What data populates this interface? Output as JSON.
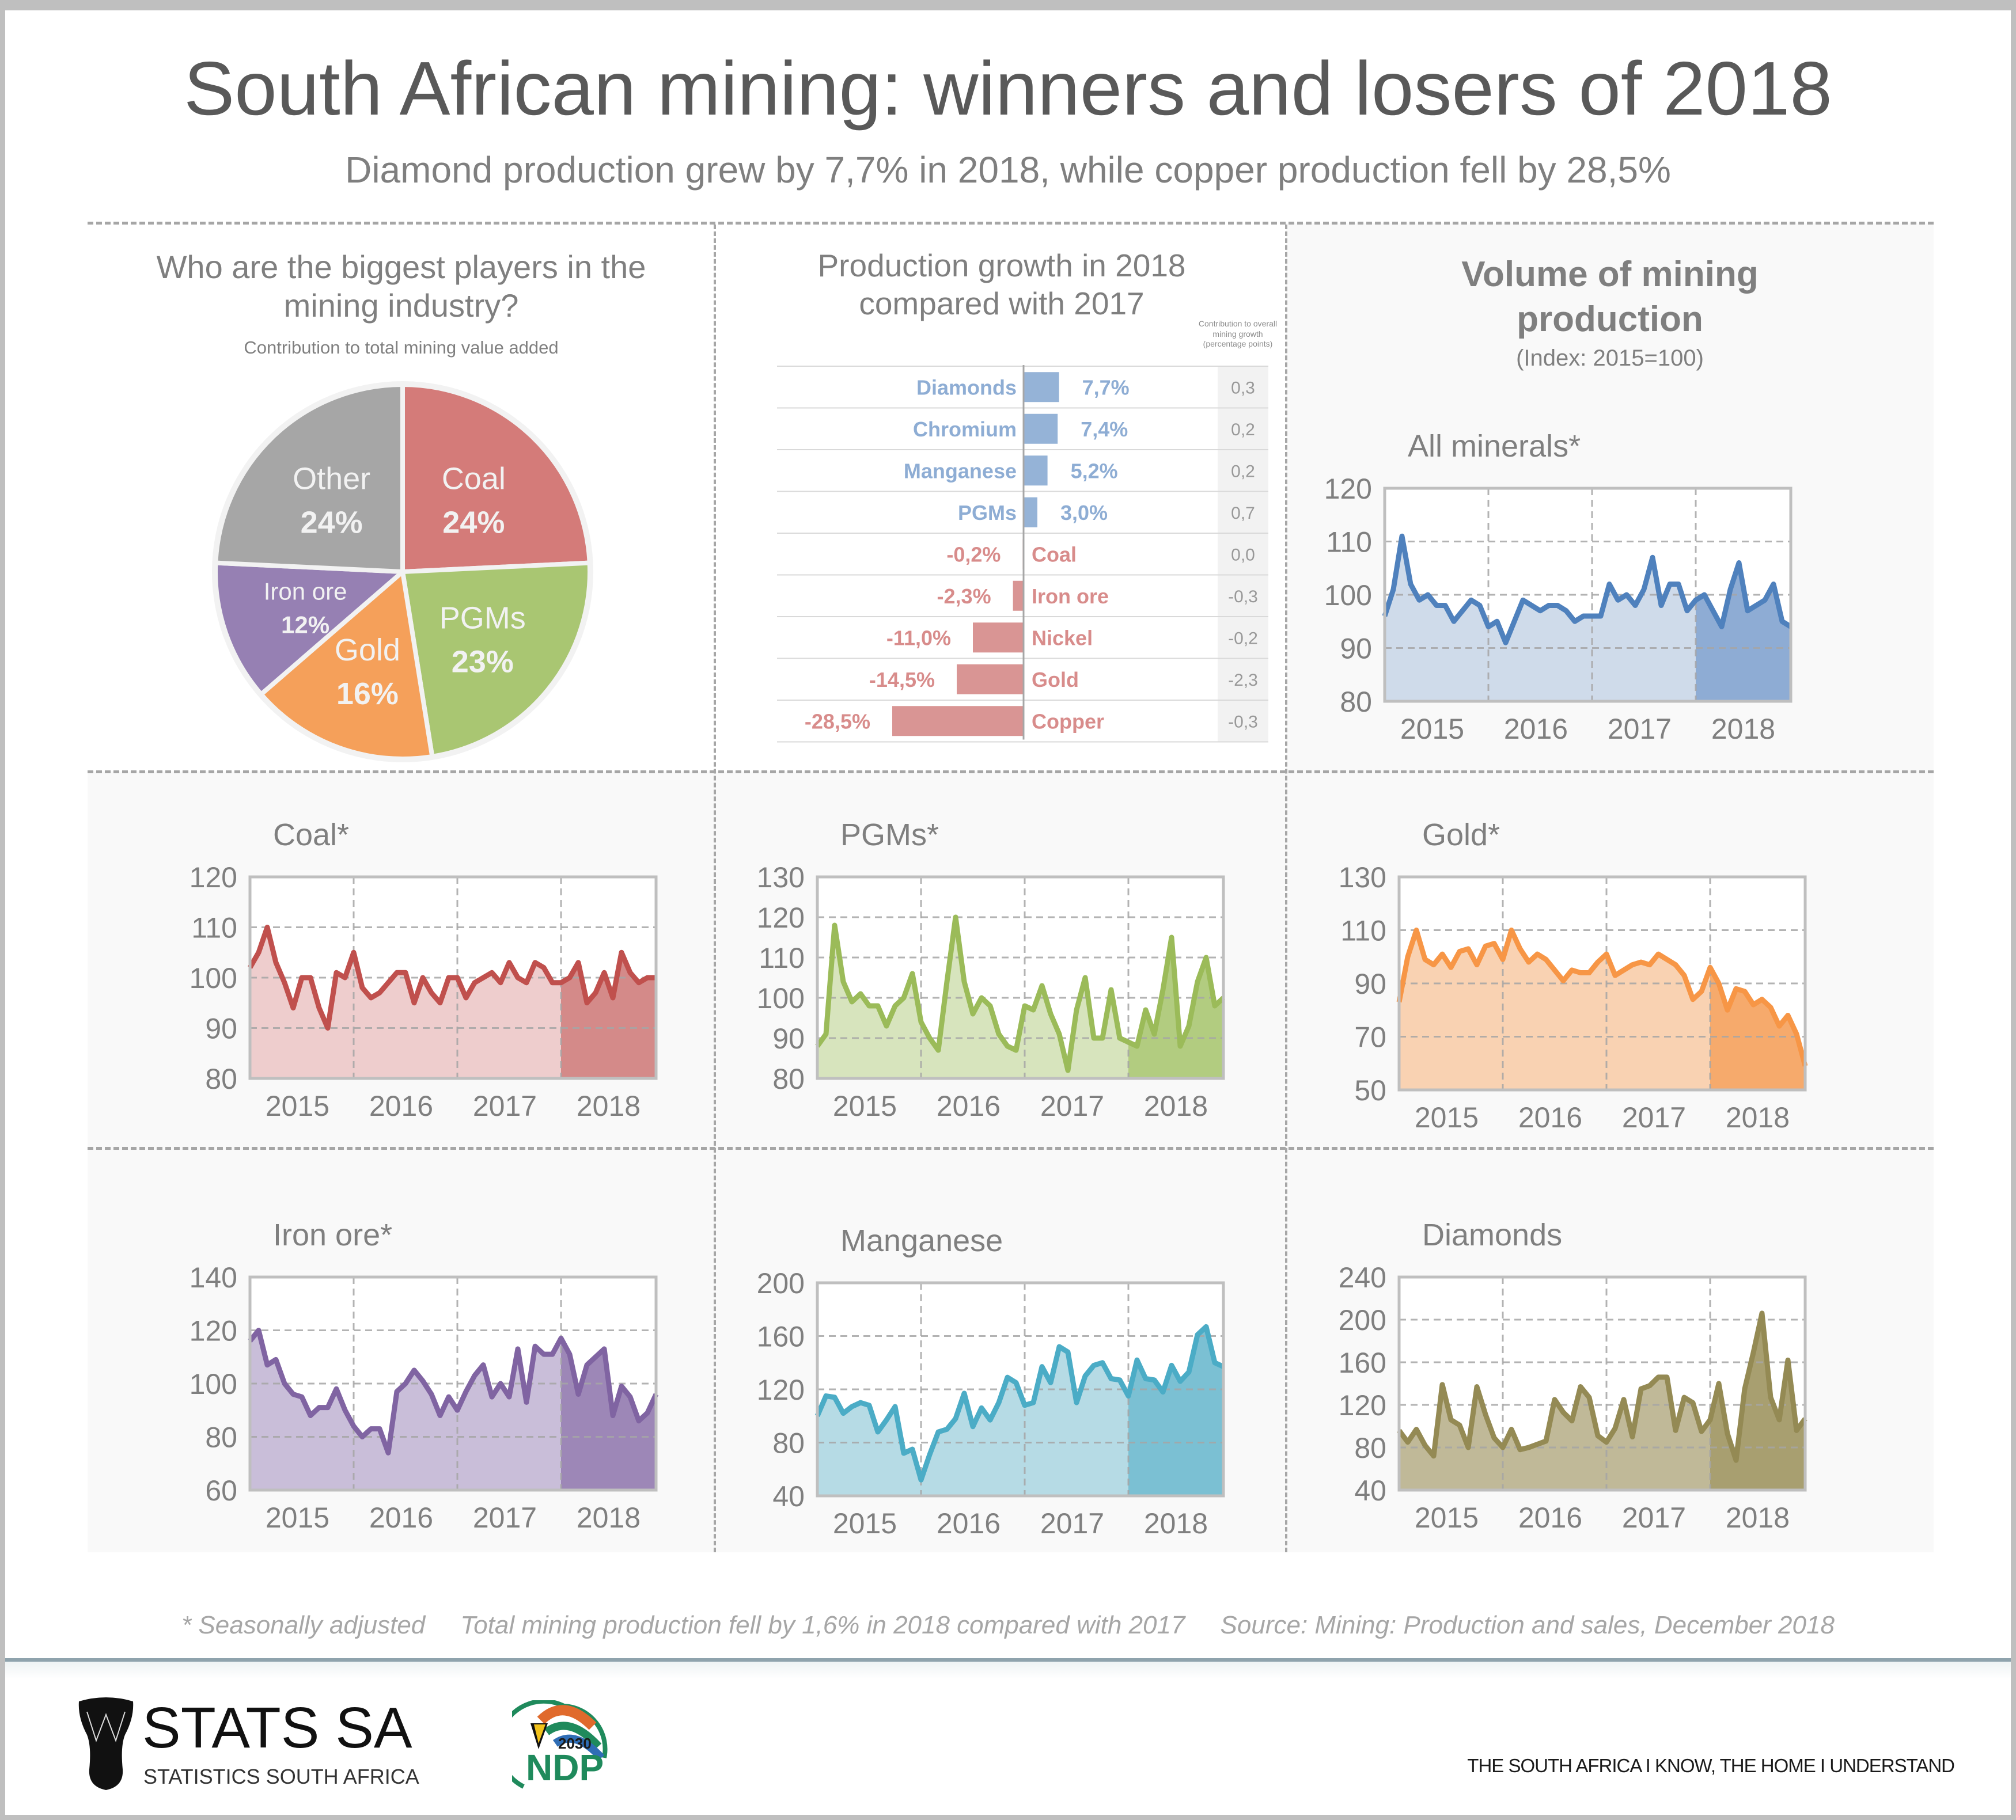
{
  "header": {
    "title": "South African mining: winners and losers of 2018",
    "subtitle": "Diamond production grew by 7,7% in 2018, while copper production fell by 28,5%"
  },
  "colors": {
    "text": "#595959",
    "muted": "#7f7f7f",
    "positive": "#95b3d7",
    "negative": "#d99594",
    "coal": "#c0504d",
    "pgms": "#9bbb59",
    "gold": "#f79646",
    "iron_ore": "#8064a2",
    "manganese": "#4bacc6",
    "diamonds": "#948a54",
    "all_minerals": "#4f81bd",
    "other": "#a6a6a6"
  },
  "pie_panel": {
    "title_line1": "Who are the biggest players in the",
    "title_line2": "mining industry?",
    "subtitle": "Contribution to total mining value added"
  },
  "bar_panel": {
    "title_line1": "Production growth in 2018",
    "title_line2": "compared with 2017",
    "contribution_header": [
      "Contribution to overall",
      "mining growth",
      "(percentage points)"
    ]
  },
  "volume_panel": {
    "title_line1": "Volume of mining",
    "title_line2": "production",
    "subtitle": "(Index: 2015=100)"
  },
  "footer": {
    "footnote": "* Seasonally adjusted     Total mining production fell by 1,6% in 2018 compared with 2017     Source: Mining: Production and sales, December 2018",
    "logo_main": "STATS SA",
    "logo_sub": "STATISTICS SOUTH AFRICA",
    "ndp_year": "2030",
    "ndp_text": "NDP",
    "tagline": "THE SOUTH AFRICA I KNOW, THE HOME I UNDERSTAND"
  },
  "chart_data": [
    {
      "id": "pie",
      "type": "pie",
      "title": "Who are the biggest players in the mining industry?",
      "subtitle": "Contribution to total mining value added",
      "slices": [
        {
          "label": "Coal",
          "value": 24,
          "display": "24%",
          "color": "#d47b79"
        },
        {
          "label": "PGMs",
          "value": 23,
          "display": "23%",
          "color": "#a9c672"
        },
        {
          "label": "Gold",
          "value": 16,
          "display": "16%",
          "color": "#f5a05a"
        },
        {
          "label": "Iron ore",
          "value": 12,
          "display": "12%",
          "color": "#9680b3"
        },
        {
          "label": "Other",
          "value": 24,
          "display": "24%",
          "color": "#a6a6a6"
        }
      ]
    },
    {
      "id": "growth",
      "type": "bar",
      "orientation": "horizontal",
      "title": "Production growth in 2018 compared with 2017",
      "categories": [
        "Diamonds",
        "Chromium",
        "Manganese",
        "PGMs",
        "Coal",
        "Iron ore",
        "Nickel",
        "Gold",
        "Copper"
      ],
      "values": [
        7.7,
        7.4,
        5.2,
        3.0,
        -0.2,
        -2.3,
        -11.0,
        -14.5,
        -28.5
      ],
      "value_labels": [
        "7,7%",
        "7,4%",
        "5,2%",
        "3,0%",
        "-0,2%",
        "-2,3%",
        "-11,0%",
        "-14,5%",
        "-28,5%"
      ],
      "contribution_label": "Contribution to overall mining growth (percentage points)",
      "contribution": [
        "0,3",
        "0,2",
        "0,2",
        "0,7",
        "0,0",
        "-0,3",
        "-0,2",
        "-2,3",
        "-0,3"
      ]
    },
    {
      "id": "all_minerals",
      "type": "area",
      "title": "All minerals*",
      "color": "#4f81bd",
      "fill": "#cfdbea",
      "fill_2018": "#8eacd4",
      "ylim": [
        80,
        120
      ],
      "yticks": [
        80,
        90,
        100,
        110,
        120
      ],
      "xlabels": [
        "2015",
        "2016",
        "2017",
        "2018"
      ],
      "grid": true,
      "x": "monthly Jan 2015 - Dec 2018",
      "values": [
        96,
        101,
        111,
        102,
        99,
        100,
        98,
        98,
        95,
        97,
        99,
        98,
        94,
        95,
        91,
        95,
        99,
        98,
        97,
        98,
        98,
        97,
        95,
        96,
        96,
        96,
        102,
        99,
        100,
        98,
        101,
        107,
        98,
        102,
        102,
        97,
        99,
        100,
        97,
        94,
        101,
        106,
        97,
        98,
        99,
        102,
        95,
        94
      ]
    },
    {
      "id": "coal",
      "type": "area",
      "title": "Coal*",
      "color": "#c0504d",
      "fill": "#eecdcd",
      "fill_2018": "#d48a89",
      "ylim": [
        80,
        120
      ],
      "yticks": [
        80,
        90,
        100,
        110,
        120
      ],
      "xlabels": [
        "2015",
        "2016",
        "2017",
        "2018"
      ],
      "grid": true,
      "values": [
        102,
        105,
        110,
        103,
        99,
        94,
        100,
        100,
        94,
        90,
        101,
        100,
        105,
        98,
        96,
        97,
        99,
        101,
        101,
        95,
        100,
        97,
        95,
        100,
        100,
        96,
        99,
        100,
        101,
        99,
        103,
        100,
        99,
        103,
        102,
        99,
        99,
        100,
        103,
        95,
        97,
        101,
        96,
        105,
        101,
        99,
        100,
        100
      ]
    },
    {
      "id": "pgms",
      "type": "area",
      "title": "PGMs*",
      "color": "#9bbb59",
      "fill": "#d7e4bd",
      "fill_2018": "#b2cc80",
      "ylim": [
        80,
        130
      ],
      "yticks": [
        80,
        90,
        100,
        110,
        120,
        130
      ],
      "xlabels": [
        "2015",
        "2016",
        "2017",
        "2018"
      ],
      "grid": true,
      "values": [
        88,
        91,
        118,
        104,
        99,
        101,
        98,
        98,
        93,
        98,
        100,
        106,
        94,
        90,
        87,
        104,
        120,
        104,
        96,
        100,
        98,
        91,
        88,
        87,
        98,
        97,
        103,
        96,
        91,
        82,
        97,
        105,
        90,
        90,
        102,
        90,
        89,
        88,
        97,
        91,
        102,
        115,
        88,
        93,
        104,
        110,
        98,
        100
      ]
    },
    {
      "id": "gold",
      "type": "area",
      "title": "Gold*",
      "color": "#f79646",
      "fill": "#f9d2b2",
      "fill_2018": "#f6aa6c",
      "ylim": [
        50,
        130
      ],
      "yticks": [
        50,
        70,
        90,
        110,
        130
      ],
      "xlabels": [
        "2015",
        "2016",
        "2017",
        "2018"
      ],
      "grid": true,
      "values": [
        83,
        100,
        110,
        99,
        97,
        101,
        96,
        102,
        103,
        97,
        104,
        105,
        99,
        110,
        103,
        98,
        101,
        99,
        95,
        91,
        95,
        94,
        94,
        98,
        101,
        93,
        95,
        97,
        98,
        97,
        101,
        99,
        97,
        93,
        84,
        87,
        96,
        90,
        80,
        88,
        87,
        82,
        84,
        81,
        74,
        78,
        71,
        59
      ]
    },
    {
      "id": "iron_ore",
      "type": "area",
      "title": "Iron ore*",
      "color": "#8064a2",
      "fill": "#c9bed9",
      "fill_2018": "#9d87b7",
      "ylim": [
        60,
        140
      ],
      "yticks": [
        60,
        80,
        100,
        120,
        140
      ],
      "xlabels": [
        "2015",
        "2016",
        "2017",
        "2018"
      ],
      "grid": true,
      "values": [
        116,
        120,
        107,
        109,
        100,
        96,
        95,
        88,
        91,
        91,
        98,
        90,
        84,
        80,
        83,
        83,
        74,
        97,
        100,
        105,
        101,
        96,
        88,
        95,
        90,
        97,
        103,
        107,
        95,
        100,
        95,
        113,
        93,
        114,
        111,
        111,
        117,
        111,
        96,
        107,
        110,
        113,
        88,
        99,
        95,
        86,
        89,
        96
      ]
    },
    {
      "id": "manganese",
      "type": "area",
      "title": "Manganese",
      "color": "#4bacc6",
      "fill": "#b6dbe5",
      "fill_2018": "#7bc0d3",
      "ylim": [
        40,
        200
      ],
      "yticks": [
        40,
        80,
        120,
        160,
        200
      ],
      "xlabels": [
        "2015",
        "2016",
        "2017",
        "2018"
      ],
      "grid": true,
      "values": [
        100,
        115,
        114,
        102,
        107,
        110,
        108,
        88,
        97,
        107,
        72,
        75,
        52,
        71,
        88,
        90,
        98,
        117,
        92,
        106,
        97,
        110,
        129,
        125,
        108,
        110,
        137,
        125,
        152,
        148,
        110,
        130,
        138,
        140,
        128,
        127,
        115,
        142,
        128,
        127,
        118,
        138,
        126,
        133,
        161,
        167,
        140,
        137
      ]
    },
    {
      "id": "diamonds",
      "type": "area",
      "title": "Diamonds",
      "color": "#948a54",
      "fill": "#c0b998",
      "fill_2018": "#a89f70",
      "ylim": [
        40,
        240
      ],
      "yticks": [
        40,
        80,
        120,
        160,
        200,
        240
      ],
      "xlabels": [
        "2015",
        "2016",
        "2017",
        "2018"
      ],
      "grid": true,
      "values": [
        96,
        85,
        97,
        82,
        72,
        139,
        106,
        101,
        80,
        137,
        111,
        89,
        80,
        97,
        78,
        80,
        83,
        86,
        125,
        113,
        105,
        137,
        127,
        91,
        85,
        98,
        125,
        90,
        135,
        138,
        146,
        146,
        96,
        127,
        122,
        95,
        106,
        140,
        93,
        68,
        135,
        169,
        206,
        127,
        106,
        162,
        96,
        107
      ]
    }
  ]
}
